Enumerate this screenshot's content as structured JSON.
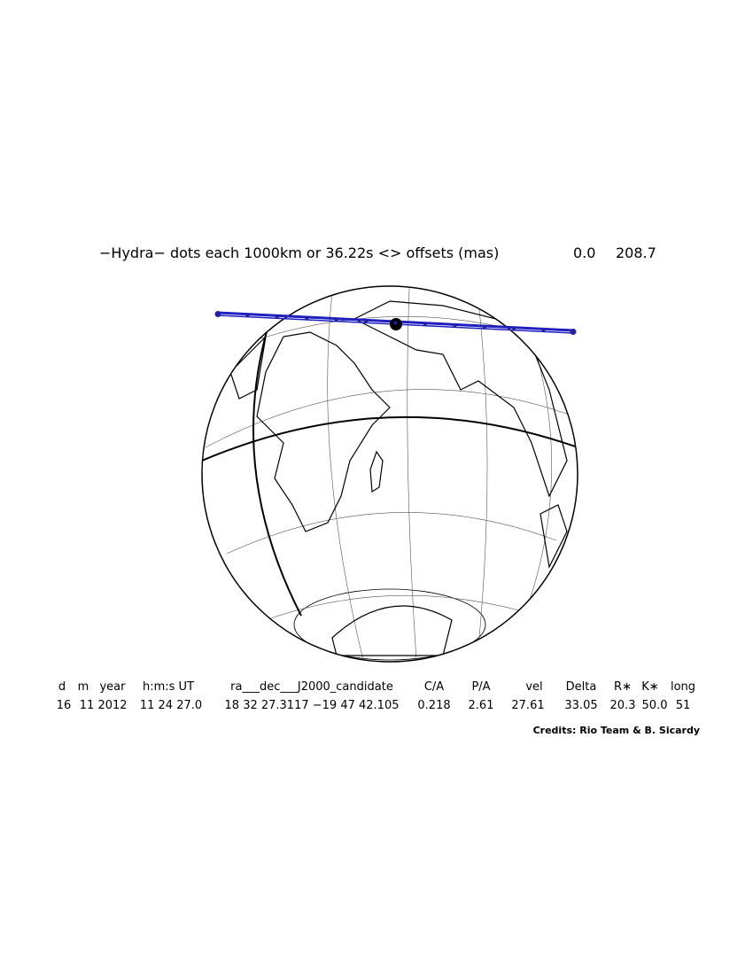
{
  "title": {
    "text": "−Hydra− dots each 1000km or 36.22s <> offsets (mas)",
    "offset_x": "0.0",
    "offset_y": "208.7"
  },
  "table": {
    "columns": [
      "d",
      "m",
      "year",
      "h:m:s UT",
      "ra___dec___J2000_candidate",
      "C/A",
      "P/A",
      "vel",
      "Delta",
      "R∗",
      "K∗",
      "long"
    ],
    "values": [
      "16",
      "11",
      "2012",
      "11 24 27.0",
      "18 32 27.3117 −19 47 42.105",
      "0.218",
      "2.61",
      "27.61",
      "33.05",
      "20.3",
      "50.0",
      "51"
    ]
  },
  "credits": "Credits: Rio Team & B. Sicardy"
}
